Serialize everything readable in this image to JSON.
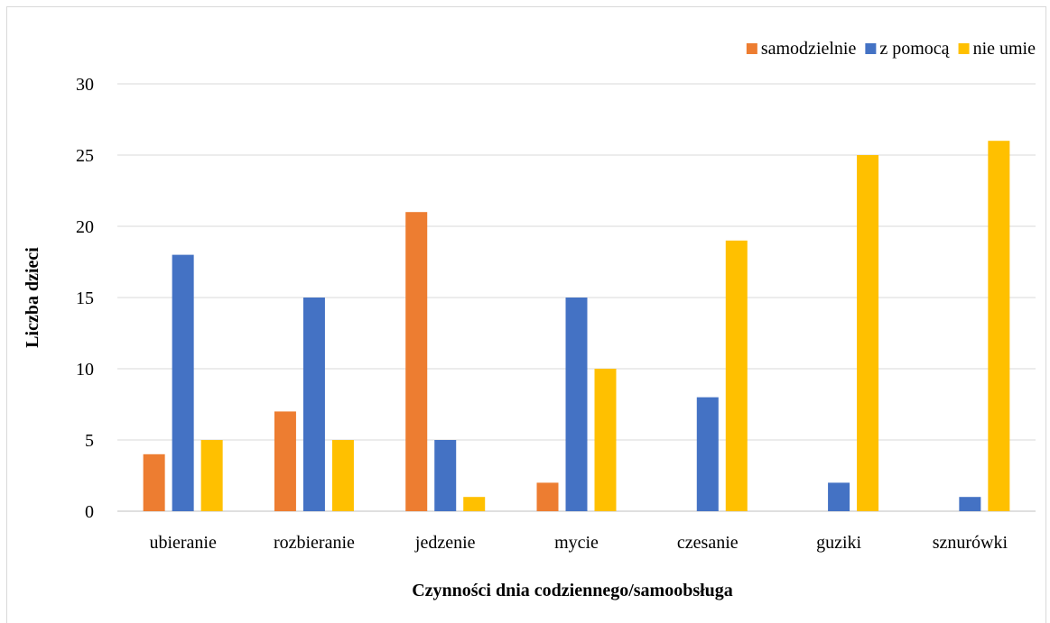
{
  "chart_data": {
    "type": "bar",
    "title": "",
    "xlabel": "Czynności dnia codziennego/samoobsługa",
    "ylabel": "Liczba dzieci",
    "ylim": [
      0,
      30
    ],
    "yticks": [
      0,
      5,
      10,
      15,
      20,
      25,
      30
    ],
    "grid": true,
    "legend_position": "top-right",
    "categories": [
      "ubieranie",
      "rozbieranie",
      "jedzenie",
      "mycie",
      "czesanie",
      "guziki",
      "sznurówki"
    ],
    "series": [
      {
        "name": "samodzielnie",
        "color": "#ED7D31",
        "values": [
          4,
          7,
          21,
          2,
          0,
          0,
          0
        ]
      },
      {
        "name": "z pomocą",
        "color": "#4472C4",
        "values": [
          18,
          15,
          5,
          15,
          8,
          2,
          1
        ]
      },
      {
        "name": "nie umie",
        "color": "#FFC000",
        "values": [
          5,
          5,
          1,
          10,
          19,
          25,
          26
        ]
      }
    ]
  }
}
